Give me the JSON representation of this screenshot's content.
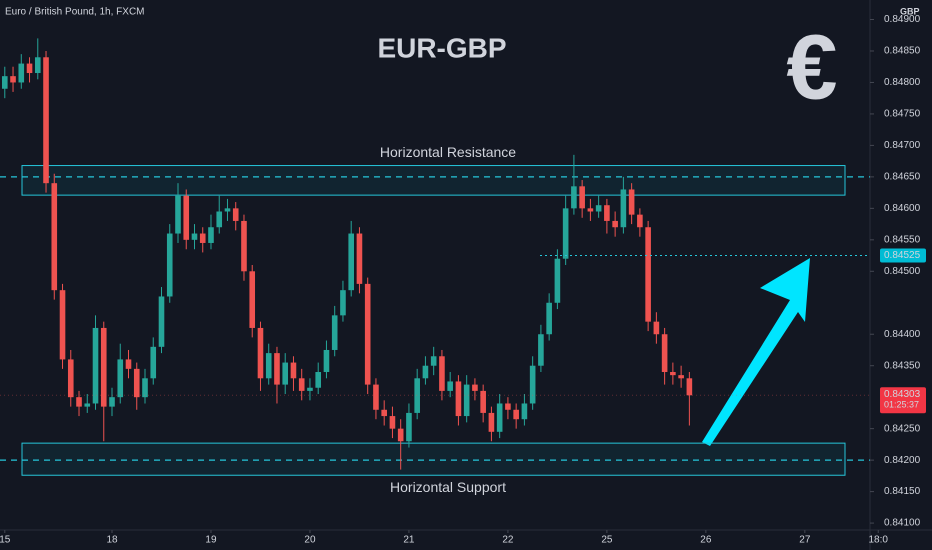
{
  "chart_data": {
    "type": "candlestick",
    "header": "Euro / British Pound, 1h, FXCM",
    "title": "EUR-GBP",
    "symbol": "€",
    "y_label": "GBP",
    "up_color": "#26a69a",
    "down_color": "#ef5350",
    "grid": false,
    "categories": [
      null,
      null,
      null,
      null,
      null,
      null,
      null,
      null,
      null,
      null,
      null,
      null,
      null,
      null,
      null,
      null,
      null,
      null,
      null,
      null,
      null,
      null,
      null,
      null,
      null,
      null,
      null,
      null,
      null,
      null,
      null,
      null,
      null,
      null,
      null,
      null,
      null,
      null,
      null,
      null,
      null,
      null,
      null,
      null,
      null,
      null,
      null,
      null,
      null,
      null,
      null,
      null,
      null,
      null,
      null,
      null,
      null,
      null,
      null,
      null,
      null,
      null,
      null,
      null,
      null,
      null,
      null,
      null,
      null,
      null,
      null,
      null,
      null,
      null,
      null,
      null,
      null,
      null,
      null,
      null,
      null,
      null,
      null,
      null
    ],
    "open": [
      0.8479,
      0.8481,
      0.848,
      0.8483,
      0.84815,
      0.8484,
      0.8464,
      0.8447,
      0.8436,
      0.843,
      0.84285,
      0.8429,
      0.8441,
      0.84285,
      0.843,
      0.8436,
      0.84345,
      0.843,
      0.8433,
      0.8438,
      0.8446,
      0.8456,
      0.8462,
      0.8455,
      0.8456,
      0.84545,
      0.8457,
      0.84595,
      0.846,
      0.8458,
      0.845,
      0.8441,
      0.8433,
      0.8437,
      0.8432,
      0.84355,
      0.8433,
      0.8431,
      0.84315,
      0.8434,
      0.84375,
      0.8443,
      0.8447,
      0.8456,
      0.8448,
      0.8432,
      0.8428,
      0.8427,
      0.8425,
      0.8423,
      0.84275,
      0.8433,
      0.8435,
      0.84365,
      0.8431,
      0.84325,
      0.8427,
      0.8432,
      0.8431,
      0.84275,
      0.84245,
      0.8429,
      0.8428,
      0.84265,
      0.8429,
      0.8435,
      0.844,
      0.8445,
      0.8452,
      0.846,
      0.84635,
      0.846,
      0.84595,
      0.84605,
      0.8458,
      0.8457,
      0.8463,
      0.8459,
      0.8457,
      0.8442,
      0.844,
      0.8434,
      0.84335,
      0.8433
    ],
    "high": [
      0.84825,
      0.84825,
      0.84845,
      0.8484,
      0.8487,
      0.8485,
      0.84655,
      0.8448,
      0.84375,
      0.8431,
      0.84305,
      0.8443,
      0.8442,
      0.84315,
      0.84385,
      0.84375,
      0.84355,
      0.84345,
      0.84395,
      0.84475,
      0.84575,
      0.8464,
      0.8463,
      0.84575,
      0.8457,
      0.8459,
      0.8462,
      0.84615,
      0.8461,
      0.8459,
      0.8451,
      0.8442,
      0.84385,
      0.8438,
      0.8437,
      0.84365,
      0.84345,
      0.8433,
      0.84355,
      0.8439,
      0.84445,
      0.84485,
      0.8458,
      0.8457,
      0.8449,
      0.8433,
      0.84295,
      0.84285,
      0.84265,
      0.8429,
      0.84345,
      0.84365,
      0.8438,
      0.84375,
      0.8434,
      0.84335,
      0.84335,
      0.8433,
      0.8432,
      0.84285,
      0.84305,
      0.843,
      0.8429,
      0.84305,
      0.84365,
      0.84415,
      0.84465,
      0.84535,
      0.8462,
      0.84685,
      0.84645,
      0.84615,
      0.8462,
      0.84615,
      0.84595,
      0.8465,
      0.8464,
      0.846,
      0.8458,
      0.84435,
      0.8441,
      0.84355,
      0.8435,
      0.8434
    ],
    "low": [
      0.84775,
      0.84785,
      0.8479,
      0.848,
      0.84805,
      0.84625,
      0.84455,
      0.84345,
      0.84285,
      0.8427,
      0.84275,
      0.8428,
      0.8423,
      0.8427,
      0.8429,
      0.8433,
      0.8428,
      0.8429,
      0.8432,
      0.8437,
      0.8445,
      0.84545,
      0.84535,
      0.84535,
      0.8453,
      0.84535,
      0.8456,
      0.8458,
      0.84565,
      0.84485,
      0.84395,
      0.8431,
      0.8432,
      0.8429,
      0.84305,
      0.8431,
      0.84295,
      0.84295,
      0.84305,
      0.8433,
      0.84365,
      0.8442,
      0.8446,
      0.84465,
      0.84305,
      0.84265,
      0.84255,
      0.84235,
      0.84185,
      0.8422,
      0.84265,
      0.8432,
      0.84335,
      0.84295,
      0.843,
      0.84255,
      0.8426,
      0.84295,
      0.8426,
      0.8423,
      0.84235,
      0.84265,
      0.8425,
      0.84255,
      0.8428,
      0.8434,
      0.8439,
      0.8444,
      0.8451,
      0.8459,
      0.84585,
      0.8458,
      0.84585,
      0.8456,
      0.84555,
      0.8456,
      0.84575,
      0.84555,
      0.84405,
      0.84385,
      0.8432,
      0.8432,
      0.84315,
      0.84255
    ],
    "close": [
      0.8481,
      0.848,
      0.8483,
      0.84815,
      0.8484,
      0.8464,
      0.8447,
      0.8436,
      0.843,
      0.84285,
      0.8429,
      0.8441,
      0.84285,
      0.843,
      0.8436,
      0.84345,
      0.843,
      0.8433,
      0.8438,
      0.8446,
      0.8456,
      0.8462,
      0.8455,
      0.8456,
      0.84545,
      0.8457,
      0.84595,
      0.846,
      0.8458,
      0.845,
      0.8441,
      0.8433,
      0.8437,
      0.8432,
      0.84355,
      0.8433,
      0.8431,
      0.84315,
      0.8434,
      0.84375,
      0.8443,
      0.8447,
      0.8456,
      0.8448,
      0.8432,
      0.8428,
      0.8427,
      0.8425,
      0.8423,
      0.84275,
      0.8433,
      0.8435,
      0.84365,
      0.8431,
      0.84325,
      0.8427,
      0.8432,
      0.8431,
      0.84275,
      0.84245,
      0.8429,
      0.8428,
      0.84265,
      0.8429,
      0.8435,
      0.844,
      0.8445,
      0.8452,
      0.846,
      0.84635,
      0.846,
      0.84595,
      0.84605,
      0.8458,
      0.8457,
      0.8463,
      0.8459,
      0.8457,
      0.8442,
      0.844,
      0.8434,
      0.84335,
      0.8433,
      0.84303
    ],
    "xlim": [
      -0.58,
      104.9
    ],
    "xticks": [
      {
        "value": 0,
        "label": "15"
      },
      {
        "value": 13,
        "label": "18"
      },
      {
        "value": 25,
        "label": "19"
      },
      {
        "value": 37,
        "label": "20"
      },
      {
        "value": 49,
        "label": "21"
      },
      {
        "value": 61,
        "label": "22"
      },
      {
        "value": 73,
        "label": "25"
      },
      {
        "value": 85,
        "label": "26"
      },
      {
        "value": 97,
        "label": "27"
      },
      {
        "value": 105.9,
        "label": "18:0"
      }
    ],
    "ylim": [
      0.84089,
      0.84931
    ],
    "yticks": [
      {
        "value": 0.849,
        "label": "0.84900"
      },
      {
        "value": 0.8485,
        "label": "0.84850"
      },
      {
        "value": 0.848,
        "label": "0.84800"
      },
      {
        "value": 0.8475,
        "label": "0.84750"
      },
      {
        "value": 0.847,
        "label": "0.84700"
      },
      {
        "value": 0.8465,
        "label": "0.84650"
      },
      {
        "value": 0.846,
        "label": "0.84600"
      },
      {
        "value": 0.8455,
        "label": "0.84550"
      },
      {
        "value": 0.845,
        "label": "0.84500"
      },
      {
        "value": 0.844,
        "label": "0.84400"
      },
      {
        "value": 0.8435,
        "label": "0.84350"
      },
      {
        "value": 0.8425,
        "label": "0.84250"
      },
      {
        "value": 0.842,
        "label": "0.84200"
      },
      {
        "value": 0.8415,
        "label": "0.84150"
      },
      {
        "value": 0.841,
        "label": "0.84100"
      }
    ],
    "zones": [
      {
        "label": "Horizontal Resistance",
        "top": 0.84668,
        "bottom": 0.84621,
        "level": 0.8465
      },
      {
        "label": "Horizontal Support",
        "top": 0.84227,
        "bottom": 0.84176,
        "level": 0.842
      }
    ],
    "target": {
      "value": 0.84525,
      "label": "0.84525"
    },
    "last": {
      "value": 0.84303,
      "label": "0.84303",
      "countdown": "01:25:37"
    }
  }
}
